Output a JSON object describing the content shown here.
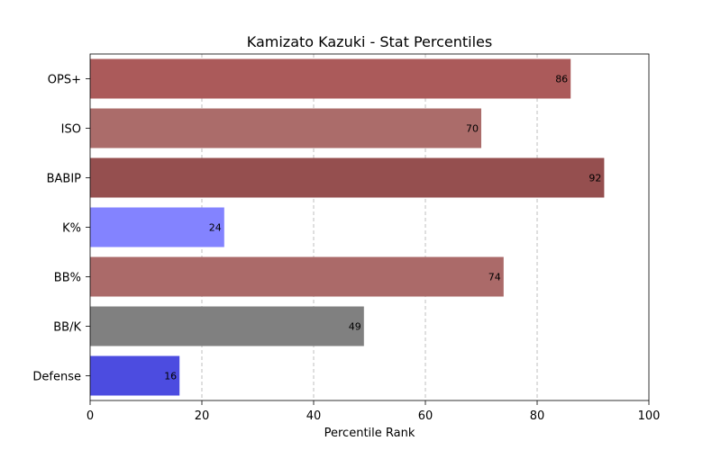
{
  "chart_data": {
    "type": "bar",
    "orientation": "horizontal",
    "title": "Kamizato Kazuki - Stat Percentiles",
    "xlabel": "Percentile Rank",
    "ylabel": "",
    "xlim": [
      0,
      100
    ],
    "xticks": [
      "0",
      "20",
      "40",
      "60",
      "80",
      "100"
    ],
    "grid": "x-dashed",
    "categories": [
      "OPS+",
      "ISO",
      "BABIP",
      "K%",
      "BB%",
      "BB/K",
      "Defense"
    ],
    "values": [
      86,
      70,
      92,
      24,
      74,
      49,
      16
    ],
    "data_labels": [
      "86",
      "70",
      "92",
      "24",
      "74",
      "49",
      "16"
    ],
    "colors": [
      "#ab5a5a",
      "#ab6c6a",
      "#954f4f",
      "#8383ff",
      "#ab6a69",
      "#808080",
      "#4c4ce0"
    ]
  }
}
